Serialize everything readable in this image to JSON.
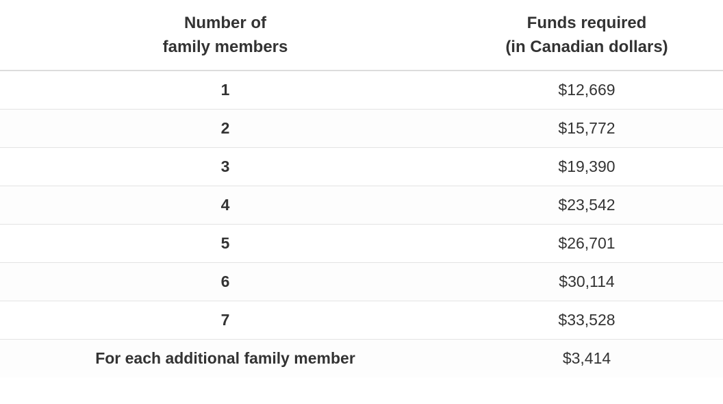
{
  "table": {
    "headers": {
      "members_line1": "Number of",
      "members_line2": "family members",
      "funds_line1": "Funds required",
      "funds_line2": "(in Canadian dollars)"
    },
    "rows": [
      {
        "members": "1",
        "funds": "$12,669"
      },
      {
        "members": "2",
        "funds": "$15,772"
      },
      {
        "members": "3",
        "funds": "$19,390"
      },
      {
        "members": "4",
        "funds": "$23,542"
      },
      {
        "members": "5",
        "funds": "$26,701"
      },
      {
        "members": "6",
        "funds": "$30,114"
      },
      {
        "members": "7",
        "funds": "$33,528"
      },
      {
        "members": "For each additional family member",
        "funds": "$3,414"
      }
    ]
  }
}
